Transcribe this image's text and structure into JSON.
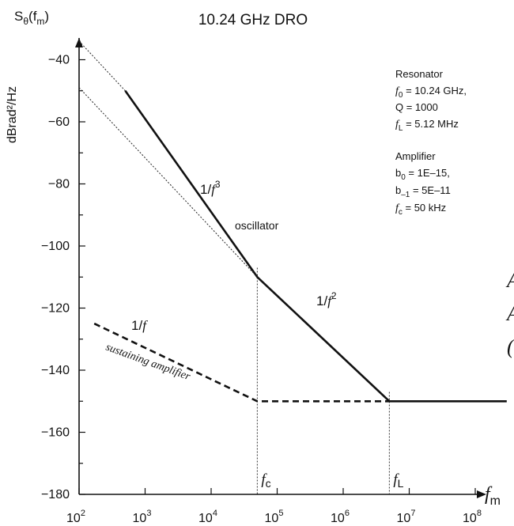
{
  "chart_data": {
    "type": "line",
    "title": "10.24 GHz DRO",
    "ylabel": "dBrad²/Hz",
    "y_symbol": "S",
    "y_symbol_sub": "θ",
    "y_symbol_arg": "(f",
    "y_symbol_arg_sub": "m",
    "y_symbol_close": ")",
    "x_symbol": "f",
    "x_symbol_sub": "m",
    "x_scale": "log",
    "xlim": [
      100,
      300000000
    ],
    "ylim": [
      -180,
      -35
    ],
    "yticks": [
      -40,
      -60,
      -80,
      -100,
      -120,
      -140,
      -160,
      -180
    ],
    "xticks": [
      {
        "base": "10",
        "exp": "2"
      },
      {
        "base": "10",
        "exp": "3"
      },
      {
        "base": "10",
        "exp": "4"
      },
      {
        "base": "10",
        "exp": "5"
      },
      {
        "base": "10",
        "exp": "6"
      },
      {
        "base": "10",
        "exp": "7"
      },
      {
        "base": "10",
        "exp": "8"
      }
    ],
    "series": [
      {
        "style": "solid",
        "x": [
          500,
          50000,
          5000000,
          300000000
        ],
        "y": [
          -50,
          -110,
          -150,
          -150
        ]
      },
      {
        "style": "dashed",
        "x": [
          170,
          50000,
          5000000
        ],
        "y": [
          -125,
          -150,
          -150
        ]
      },
      {
        "style": "dotted",
        "x": [
          100,
          500
        ],
        "y": [
          -34,
          -50
        ]
      },
      {
        "style": "dotted",
        "x": [
          100,
          50000
        ],
        "y": [
          -49,
          -110
        ]
      }
    ],
    "markers": [
      {
        "label": "f",
        "sub": "c",
        "x": 50000,
        "y_top": -107
      },
      {
        "label": "f",
        "sub": "L",
        "x": 5000000,
        "y_top": -147
      }
    ],
    "annotations": {
      "f3": {
        "text": "1/",
        "var": "f",
        "exp": "3"
      },
      "f2": {
        "text": "1/",
        "var": "f",
        "exp": "2"
      },
      "f1": {
        "text": "1/",
        "var": "f"
      },
      "oscillator": "oscillator",
      "sustaining": "sustaining amplifier"
    },
    "legend": {
      "resonator_title": "Resonator",
      "f0_sym": "f",
      "f0_sub": "0",
      "f0_val": " = 10.24 GHz,",
      "q_line": "Q = 1000",
      "fl_sym": "f",
      "fl_sub": "L",
      "fl_val": " = 5.12 MHz",
      "amp_title": "Amplifier",
      "b0_sym": "b",
      "b0_sub": "0",
      "b0_val": " = 1E–15,",
      "bm1_sym": "b",
      "bm1_sub": "–1",
      "bm1_val": " = 5E–11",
      "fc_sym": "f",
      "fc_sub": "c",
      "fc_val": " = 50 kHz"
    }
  },
  "edge_marks": [
    "A",
    "A",
    "("
  ]
}
